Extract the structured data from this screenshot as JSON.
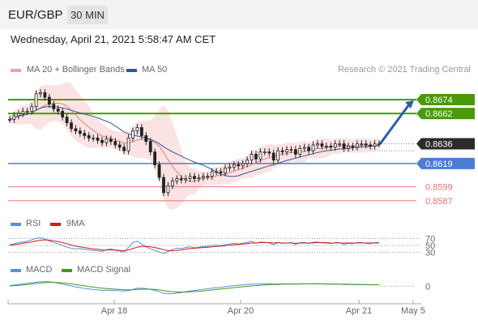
{
  "header": {
    "symbol": "EUR/GBP",
    "timeframe": "30 MIN",
    "datetime": "Wednesday, April 21, 2021 5:58:47 AM CET"
  },
  "legend": {
    "ma20": "MA 20 + Bollinger Bands",
    "ma50": "MA 50",
    "credit": "Research © 2021 Trading Central",
    "rsi": "RSI",
    "ma9": "9MA",
    "macd": "MACD",
    "macd_signal": "MACD Signal"
  },
  "colors": {
    "ma20": "#e87b7b",
    "ma50": "#2a5b9c",
    "bollinger_fill": "#fbdcdc",
    "resistance": "#4a9a0b",
    "support": "#4b7dd6",
    "minor_support": "#e57373",
    "current_price": "#2b2b2b",
    "rsi": "#5b8de0",
    "ma9": "#d11a1a",
    "macd": "#5b8de0",
    "macd_signal": "#3c9a1e",
    "arrow": "#2a5ea8"
  },
  "chart_data": [
    {
      "type": "candlestick",
      "title": "",
      "x_ticks": [
        "Apr 18",
        "Apr 20",
        "Apr 21",
        "May 5"
      ],
      "levels": [
        {
          "label": "0.8674",
          "value": 0.8674,
          "kind": "resistance"
        },
        {
          "label": "0.8662",
          "value": 0.8662,
          "kind": "resistance"
        },
        {
          "label": "0.8636",
          "value": 0.8636,
          "kind": "current"
        },
        {
          "label": "0.8619",
          "value": 0.8619,
          "kind": "support"
        },
        {
          "label": "0.8599",
          "value": 0.8599,
          "kind": "minor_support"
        },
        {
          "label": "0.8587",
          "value": 0.8587,
          "kind": "minor_support"
        }
      ],
      "close_series": [
        0.8657,
        0.866,
        0.8662,
        0.8664,
        0.8664,
        0.8668,
        0.8679,
        0.868,
        0.8676,
        0.867,
        0.8666,
        0.8664,
        0.8659,
        0.8654,
        0.8649,
        0.8647,
        0.8645,
        0.8643,
        0.8641,
        0.8641,
        0.8639,
        0.8637,
        0.864,
        0.8638,
        0.8635,
        0.8633,
        0.863,
        0.8641,
        0.8647,
        0.865,
        0.8643,
        0.8638,
        0.8629,
        0.8618,
        0.8607,
        0.8594,
        0.86,
        0.8604,
        0.8606,
        0.8605,
        0.8606,
        0.8608,
        0.8606,
        0.8607,
        0.8608,
        0.8608,
        0.8612,
        0.8612,
        0.8611,
        0.8615,
        0.8616,
        0.8618,
        0.8617,
        0.8619,
        0.8622,
        0.8627,
        0.8623,
        0.8629,
        0.8629,
        0.8628,
        0.8622,
        0.863,
        0.8629,
        0.8631,
        0.8631,
        0.8627,
        0.8632,
        0.8633,
        0.863,
        0.8635,
        0.8636,
        0.8634,
        0.8634,
        0.8633,
        0.8636,
        0.8636,
        0.8632,
        0.8634,
        0.8633,
        0.8636,
        0.8636,
        0.8635,
        0.8634,
        0.8636,
        0.8636
      ],
      "forecast_target": 0.8674,
      "ylim": [
        0.8582,
        0.869
      ]
    },
    {
      "type": "line",
      "name": "RSI panel",
      "y_ticks": [
        70,
        50,
        30
      ],
      "ylim": [
        20,
        80
      ],
      "series": [
        {
          "name": "RSI",
          "values": [
            52,
            55,
            58,
            60,
            62,
            66,
            70,
            72,
            68,
            63,
            58,
            55,
            50,
            45,
            42,
            40,
            41,
            39,
            37,
            36,
            35,
            33,
            38,
            40,
            36,
            34,
            31,
            45,
            58,
            62,
            54,
            46,
            40,
            36,
            31,
            27,
            33,
            39,
            42,
            41,
            44,
            46,
            43,
            45,
            47,
            47,
            50,
            51,
            49,
            53,
            54,
            56,
            54,
            57,
            58,
            62,
            56,
            60,
            59,
            57,
            52,
            58,
            56,
            57,
            58,
            53,
            58,
            59,
            55,
            60,
            60,
            57,
            57,
            55,
            58,
            58,
            53,
            56,
            55,
            58,
            58,
            56,
            55,
            58,
            58
          ]
        },
        {
          "name": "9MA",
          "values": [
            50,
            52,
            54,
            56,
            58,
            60,
            63,
            65,
            66,
            65,
            63,
            61,
            58,
            55,
            51,
            48,
            46,
            44,
            42,
            40,
            39,
            37,
            37,
            37,
            37,
            36,
            35,
            37,
            41,
            45,
            47,
            47,
            46,
            44,
            41,
            38,
            35,
            35,
            36,
            37,
            39,
            41,
            42,
            43,
            44,
            45,
            46,
            47,
            48,
            49,
            51,
            52,
            53,
            54,
            55,
            57,
            57,
            58,
            58,
            58,
            57,
            58,
            57,
            57,
            57,
            56,
            57,
            57,
            57,
            57,
            58,
            58,
            58,
            57,
            57,
            57,
            57,
            57,
            57,
            57,
            57,
            57,
            57,
            57,
            57
          ]
        }
      ]
    },
    {
      "type": "line",
      "name": "MACD panel",
      "y_ticks": [
        0
      ],
      "ylim": [
        -0.0011,
        0.0008
      ],
      "series": [
        {
          "name": "MACD",
          "values": [
            6e-05,
            0.00012,
            0.00018,
            0.00024,
            0.0003,
            0.00036,
            0.00042,
            0.00048,
            0.0005,
            0.00046,
            0.0004,
            0.00032,
            0.00022,
            0.00012,
            2e-05,
            -8e-05,
            -0.00016,
            -0.00024,
            -0.0003,
            -0.00036,
            -0.0004,
            -0.00044,
            -0.00044,
            -0.00044,
            -0.00046,
            -0.00048,
            -0.00052,
            -0.00046,
            -0.00034,
            -0.00024,
            -0.00022,
            -0.00026,
            -0.00034,
            -0.00046,
            -0.0006,
            -0.00076,
            -0.00082,
            -0.0008,
            -0.00074,
            -0.00068,
            -0.0006,
            -0.00052,
            -0.00046,
            -0.0004,
            -0.00034,
            -0.00028,
            -0.00022,
            -0.00016,
            -0.00012,
            -6e-05,
            0.0,
            6e-05,
            0.0001,
            0.00014,
            0.00018,
            0.00022,
            0.00022,
            0.00024,
            0.00026,
            0.00026,
            0.00022,
            0.00024,
            0.00024,
            0.00024,
            0.00025,
            0.00023,
            0.00025,
            0.00026,
            0.00024,
            0.00026,
            0.00026,
            0.00024,
            0.00022,
            0.0002,
            0.0002,
            0.0002,
            0.00018,
            0.00018,
            0.00016,
            0.00016,
            0.00016,
            0.00015,
            0.00014,
            0.00014,
            0.00014
          ]
        },
        {
          "name": "MACD Signal",
          "values": [
            2e-05,
            5e-05,
            9e-05,
            0.00013,
            0.00018,
            0.00023,
            0.00028,
            0.00033,
            0.00037,
            0.0004,
            0.0004,
            0.00038,
            0.00035,
            0.0003,
            0.00024,
            0.00017,
            0.0001,
            3e-05,
            -4e-05,
            -0.0001,
            -0.00016,
            -0.00021,
            -0.00026,
            -0.00029,
            -0.00032,
            -0.00035,
            -0.00038,
            -0.00039,
            -0.00038,
            -0.00035,
            -0.00033,
            -0.00032,
            -0.00032,
            -0.00035,
            -0.0004,
            -0.00047,
            -0.00054,
            -0.00059,
            -0.00062,
            -0.00063,
            -0.00063,
            -0.00061,
            -0.00058,
            -0.00055,
            -0.00051,
            -0.00046,
            -0.00041,
            -0.00036,
            -0.00031,
            -0.00026,
            -0.00021,
            -0.00016,
            -0.00011,
            -6e-05,
            -2e-05,
            3e-05,
            6e-05,
            0.0001,
            0.00013,
            0.00016,
            0.00017,
            0.00019,
            0.0002,
            0.00021,
            0.00022,
            0.00022,
            0.00023,
            0.00024,
            0.00024,
            0.00024,
            0.00025,
            0.00025,
            0.00024,
            0.00023,
            0.00022,
            0.00022,
            0.00021,
            0.0002,
            0.00019,
            0.00018,
            0.00018,
            0.00017,
            0.00016,
            0.00016,
            0.00015
          ]
        }
      ]
    }
  ]
}
